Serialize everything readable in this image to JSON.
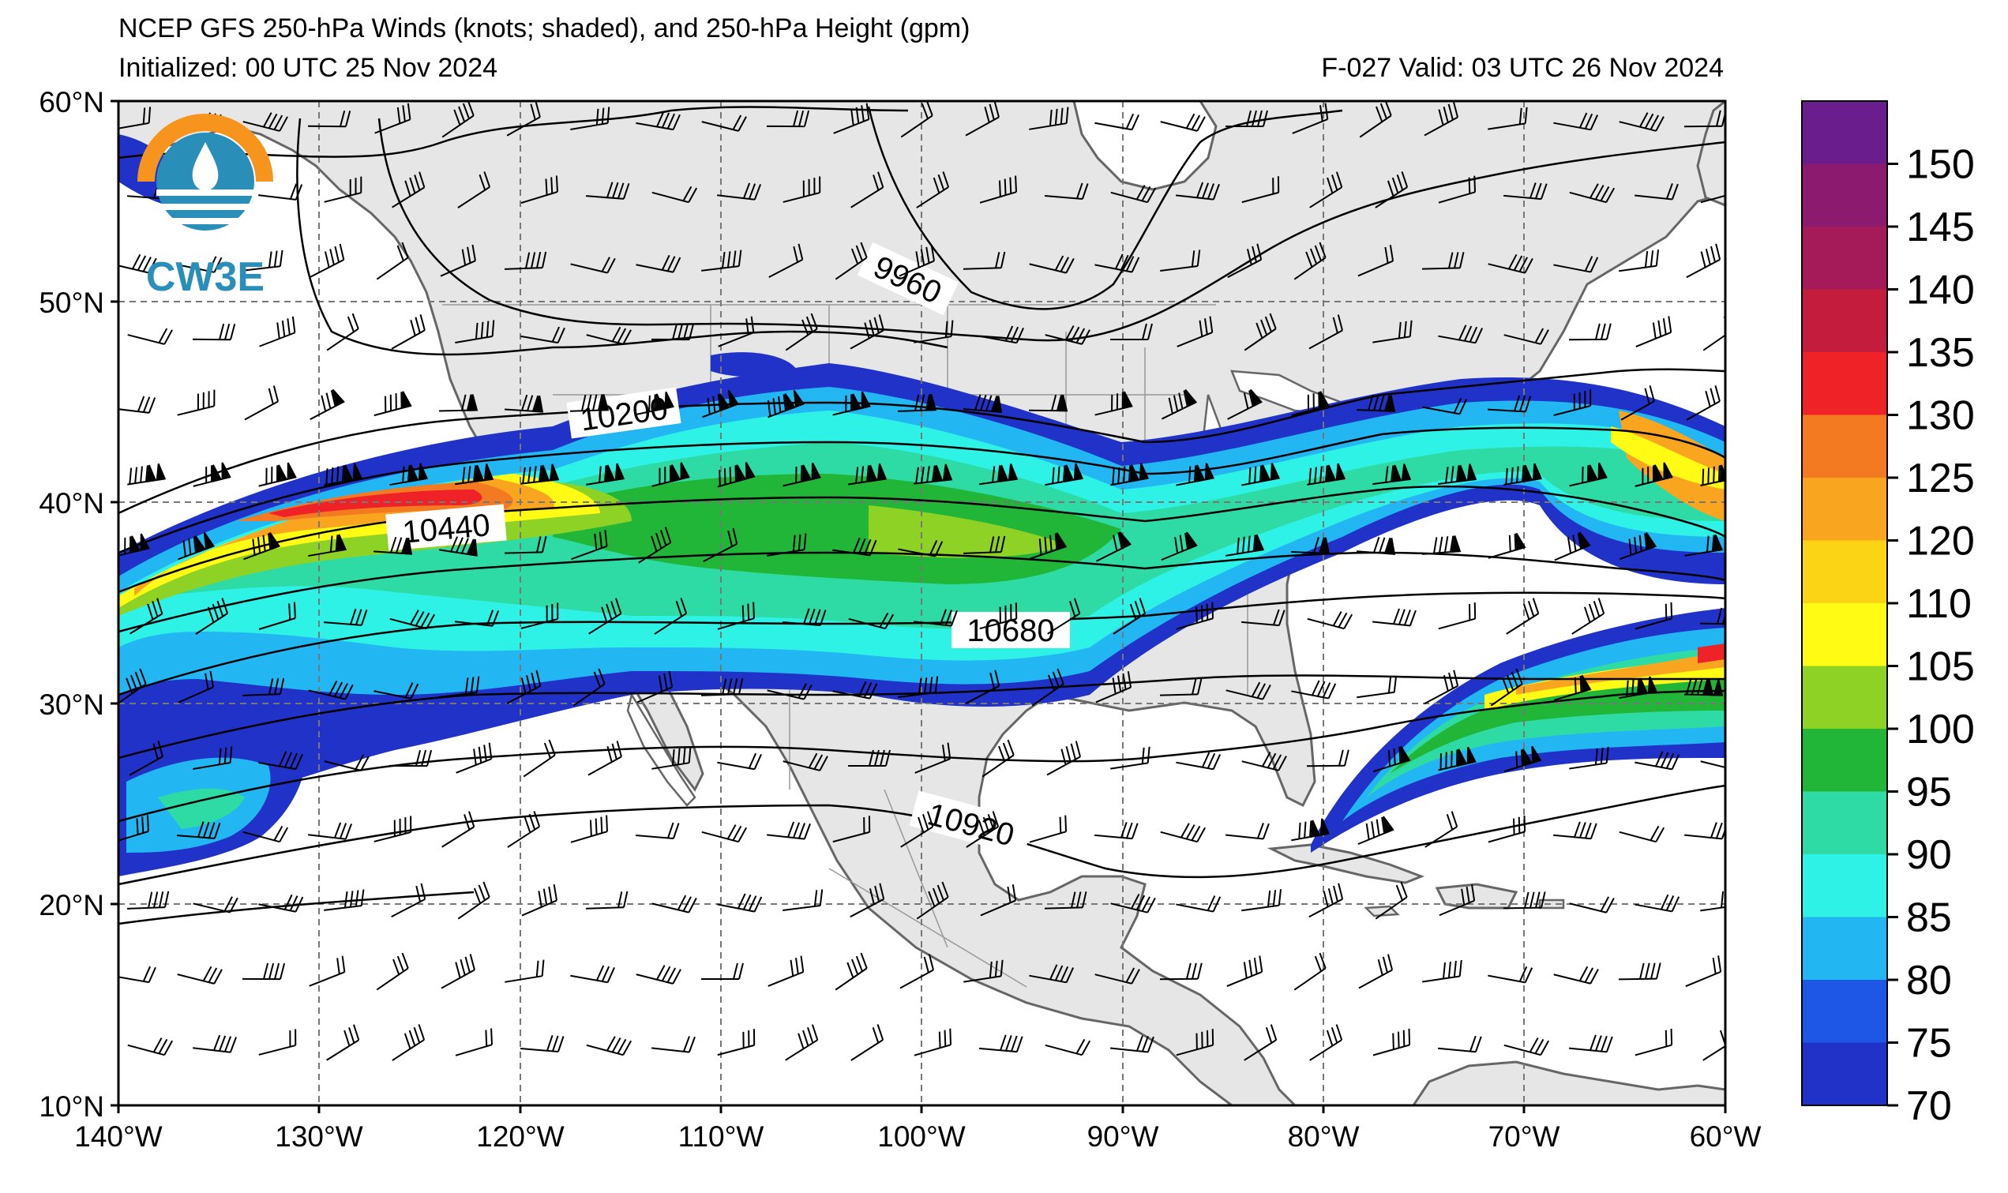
{
  "header": {
    "title": "NCEP GFS 250-hPa Winds (knots; shaded), and 250-hPa Height (gpm)",
    "initialized": "Initialized: 00 UTC 25 Nov 2024",
    "valid": "F-027  Valid: 03 UTC 26 Nov 2024"
  },
  "logo": {
    "text": "CW3E"
  },
  "axes": {
    "lat_labels": [
      "60°N",
      "50°N",
      "40°N",
      "30°N",
      "20°N",
      "10°N"
    ],
    "lon_labels": [
      "140°W",
      "130°W",
      "120°W",
      "110°W",
      "100°W",
      "90°W",
      "80°W",
      "70°W",
      "60°W"
    ]
  },
  "colorbar": {
    "ticks": [
      "150",
      "145",
      "140",
      "135",
      "130",
      "125",
      "120",
      "110",
      "105",
      "100",
      "95",
      "90",
      "85",
      "80",
      "75",
      "70"
    ],
    "colors": [
      "#6a1e8e",
      "#8c1a6e",
      "#a51b5a",
      "#c41c3c",
      "#ee2227",
      "#f47a22",
      "#f9a51f",
      "#fbd515",
      "#fffb14",
      "#8ed225",
      "#22b638",
      "#2fdba4",
      "#2ef2e6",
      "#22b6f2",
      "#1e56e6",
      "#2032c8"
    ]
  },
  "contours": {
    "labels": [
      "9960",
      "10200",
      "10440",
      "10680",
      "10920"
    ]
  },
  "colors": {
    "land": "#e6e6e6",
    "ocean": "#ffffff",
    "grid": "#777777",
    "coast": "#666666"
  }
}
